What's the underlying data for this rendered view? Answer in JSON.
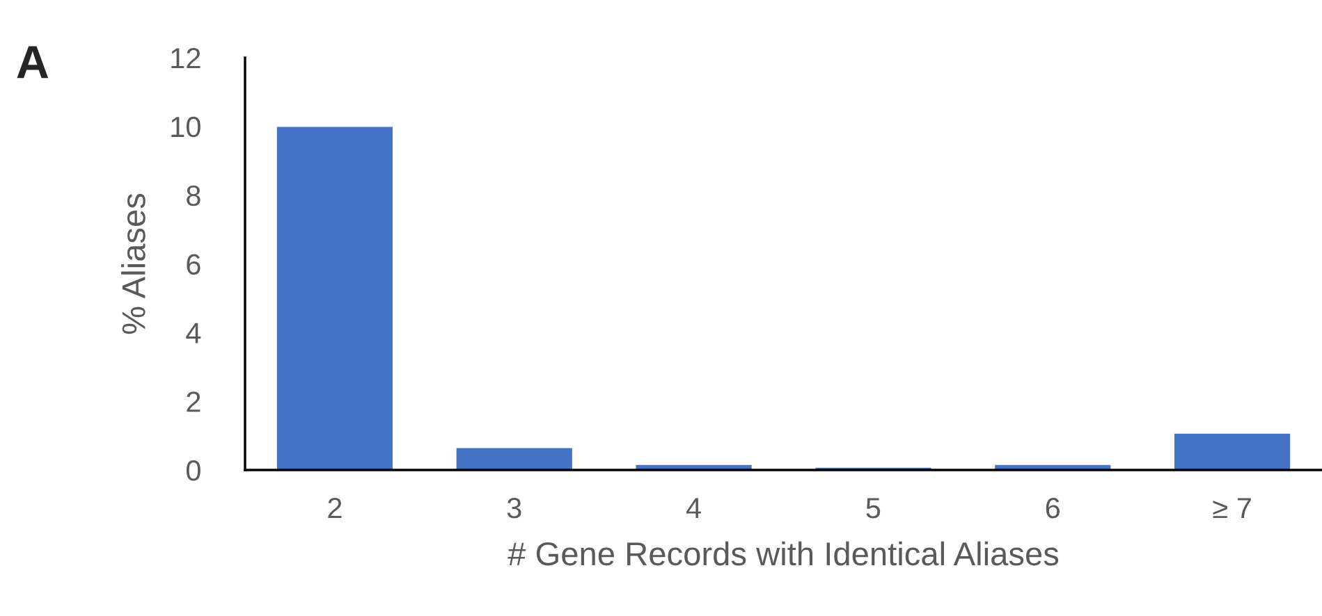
{
  "chart_data": {
    "type": "bar",
    "categories": [
      "2",
      "3",
      "4",
      "5",
      "6",
      "≥ 7"
    ],
    "values": [
      10.0,
      0.65,
      0.16,
      0.08,
      0.16,
      1.07
    ],
    "color": "#4472c4",
    "xlabel": "# Gene Records with Identical Aliases",
    "ylabel": "% Aliases",
    "ylim": [
      0,
      12
    ],
    "yticks": [
      0,
      2,
      4,
      6,
      8,
      10,
      12
    ],
    "annotations": [
      "A"
    ],
    "grid": false,
    "legend": false
  }
}
